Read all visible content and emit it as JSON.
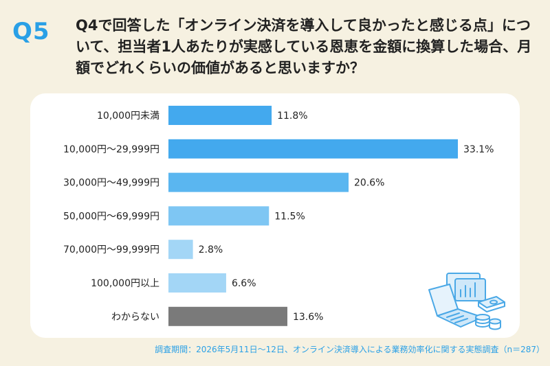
{
  "header": {
    "badge": "Q5",
    "question": "Q4で回答した「オンライン決済を導入して良かったと感じる点」について、担当者1人あたりが実感している恩恵を金額に換算した場合、月額でどれくらいの価値があると思いますか？"
  },
  "colors": {
    "accent": "#2aa0e6",
    "background": "#f6f1e1",
    "card": "#ffffff"
  },
  "chart_data": {
    "type": "bar",
    "orientation": "horizontal",
    "unit": "%",
    "categories": [
      "10,000円未満",
      "10,000円～29,999円",
      "30,000円～49,999円",
      "50,000円～69,999円",
      "70,000円～99,999円",
      "100,000円以上",
      "わからない"
    ],
    "values": [
      11.8,
      33.1,
      20.6,
      11.5,
      2.8,
      6.6,
      13.6
    ],
    "value_labels": [
      "11.8%",
      "33.1%",
      "20.6%",
      "11.5%",
      "2.8%",
      "6.6%",
      "13.6%"
    ],
    "bar_colors": [
      "#43a9ee",
      "#43a9ee",
      "#5ab6f0",
      "#7ec6f3",
      "#a3d6f6",
      "#a3d6f6",
      "#7a7a7a"
    ],
    "xlim": [
      0,
      33.1
    ],
    "grid": false,
    "legend": "none"
  },
  "footer": {
    "note": "調査期間：2026年5月11日～12日、オンライン決済導入による業務効率化に関する実態調査（n＝287）"
  },
  "illustration": {
    "icon": "laptop-with-chart-and-coins-icon"
  }
}
